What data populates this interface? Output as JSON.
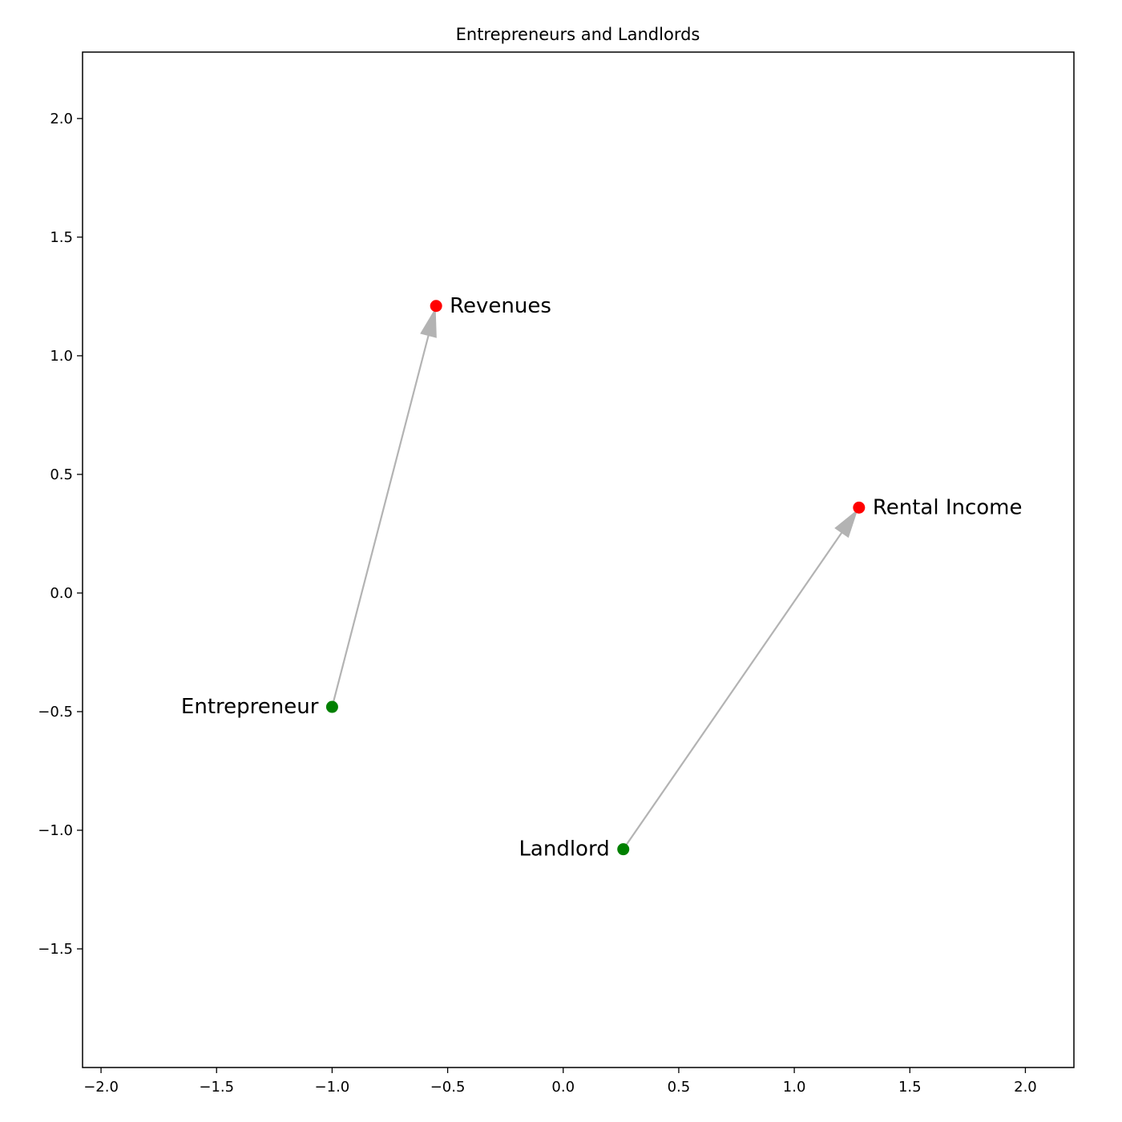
{
  "chart_data": {
    "type": "scatter",
    "title": "Entrepreneurs and Landlords",
    "xlabel": "",
    "ylabel": "",
    "xlim": [
      -2.08,
      2.21
    ],
    "ylim": [
      -2.0,
      2.28
    ],
    "xticks": [
      -2.0,
      -1.5,
      -1.0,
      -0.5,
      0.0,
      0.5,
      1.0,
      1.5,
      2.0
    ],
    "xtick_labels": [
      "−2.0",
      "−1.5",
      "−1.0",
      "−0.5",
      "0.0",
      "0.5",
      "1.0",
      "1.5",
      "2.0"
    ],
    "yticks": [
      -1.5,
      -1.0,
      -0.5,
      0.0,
      0.5,
      1.0,
      1.5,
      2.0
    ],
    "ytick_labels": [
      "−1.5",
      "−1.0",
      "−0.5",
      "0.0",
      "0.5",
      "1.0",
      "1.5",
      "2.0"
    ],
    "grid": false,
    "points": [
      {
        "label": "Entrepreneur",
        "x": -1.0,
        "y": -0.48,
        "color": "#008000",
        "label_side": "left"
      },
      {
        "label": "Revenues",
        "x": -0.55,
        "y": 1.21,
        "color": "#ff0000",
        "label_side": "right"
      },
      {
        "label": "Landlord",
        "x": 0.26,
        "y": -1.08,
        "color": "#008000",
        "label_side": "left"
      },
      {
        "label": "Rental Income",
        "x": 1.28,
        "y": 0.36,
        "color": "#ff0000",
        "label_side": "right"
      }
    ],
    "arrows": [
      {
        "from": 0,
        "to": 1,
        "color": "#b3b3b3"
      },
      {
        "from": 2,
        "to": 3,
        "color": "#b3b3b3"
      }
    ]
  }
}
